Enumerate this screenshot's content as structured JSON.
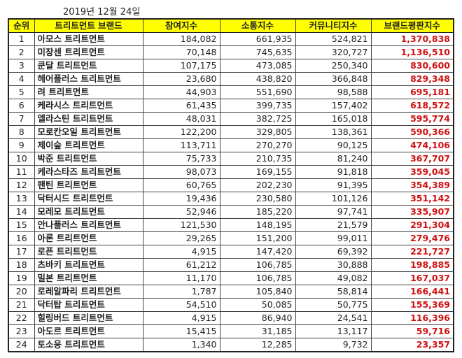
{
  "date": "2019년 12월 24일",
  "colors": {
    "header_bg": "#ffff00",
    "score_text": "#d01010"
  },
  "headers": [
    "순위",
    "트리트먼트 브랜드",
    "참여지수",
    "소통지수",
    "커뮤니티지수",
    "브랜드평판지수"
  ],
  "rows": [
    {
      "rank": "1",
      "brand": "아모스 트리트먼트",
      "participation": "184,082",
      "communication": "661,935",
      "community": "524,821",
      "reputation": "1,370,838"
    },
    {
      "rank": "2",
      "brand": "미장센 트리트먼트",
      "participation": "70,148",
      "communication": "745,635",
      "community": "320,727",
      "reputation": "1,136,510"
    },
    {
      "rank": "3",
      "brand": "쿤달 트리트먼트",
      "participation": "107,175",
      "communication": "473,085",
      "community": "250,340",
      "reputation": "830,600"
    },
    {
      "rank": "4",
      "brand": "헤어플러스 트리트먼트",
      "participation": "23,680",
      "communication": "438,820",
      "community": "366,848",
      "reputation": "829,348"
    },
    {
      "rank": "5",
      "brand": "려 트리트먼트",
      "participation": "44,903",
      "communication": "551,690",
      "community": "98,588",
      "reputation": "695,181"
    },
    {
      "rank": "6",
      "brand": "케라시스 트리트먼트",
      "participation": "61,435",
      "communication": "399,735",
      "community": "157,402",
      "reputation": "618,572"
    },
    {
      "rank": "7",
      "brand": "엘라스틴 트리트먼트",
      "participation": "48,031",
      "communication": "382,725",
      "community": "165,018",
      "reputation": "595,774"
    },
    {
      "rank": "8",
      "brand": "모로칸오일 트리트먼트",
      "participation": "122,200",
      "communication": "329,805",
      "community": "138,361",
      "reputation": "590,366"
    },
    {
      "rank": "9",
      "brand": "제이숲 트리트먼트",
      "participation": "113,711",
      "communication": "270,270",
      "community": "90,125",
      "reputation": "474,106"
    },
    {
      "rank": "10",
      "brand": "박준 트리트먼트",
      "participation": "75,733",
      "communication": "210,735",
      "community": "81,240",
      "reputation": "367,707"
    },
    {
      "rank": "11",
      "brand": "케라스타즈 트리트먼트",
      "participation": "98,073",
      "communication": "169,155",
      "community": "91,818",
      "reputation": "359,045"
    },
    {
      "rank": "12",
      "brand": "팬틴 트리트먼트",
      "participation": "60,765",
      "communication": "202,230",
      "community": "91,395",
      "reputation": "354,389"
    },
    {
      "rank": "13",
      "brand": "닥터시드 트리트먼트",
      "participation": "19,436",
      "communication": "230,580",
      "community": "101,126",
      "reputation": "351,142"
    },
    {
      "rank": "14",
      "brand": "모레모 트리트먼트",
      "participation": "52,946",
      "communication": "185,220",
      "community": "97,741",
      "reputation": "335,907"
    },
    {
      "rank": "15",
      "brand": "안나플러스 트리트먼트",
      "participation": "121,530",
      "communication": "148,195",
      "community": "21,579",
      "reputation": "291,304"
    },
    {
      "rank": "16",
      "brand": "아론 트리트먼트",
      "participation": "29,265",
      "communication": "151,200",
      "community": "99,011",
      "reputation": "279,476"
    },
    {
      "rank": "17",
      "brand": "로픈 트리트먼트",
      "participation": "4,915",
      "communication": "147,420",
      "community": "69,392",
      "reputation": "221,727"
    },
    {
      "rank": "18",
      "brand": "츠바키 트리트먼트",
      "participation": "61,212",
      "communication": "106,785",
      "community": "30,888",
      "reputation": "198,885"
    },
    {
      "rank": "19",
      "brand": "밀본 트리트먼트",
      "participation": "11,170",
      "communication": "106,785",
      "community": "49,082",
      "reputation": "167,037"
    },
    {
      "rank": "20",
      "brand": "로레알파리 트리트먼트",
      "participation": "1,787",
      "communication": "105,840",
      "community": "58,814",
      "reputation": "166,441"
    },
    {
      "rank": "21",
      "brand": "닥터탑 트리트먼트",
      "participation": "54,510",
      "communication": "50,085",
      "community": "50,775",
      "reputation": "155,369"
    },
    {
      "rank": "22",
      "brand": "힐링버드 트리트먼트",
      "participation": "4,915",
      "communication": "86,940",
      "community": "24,541",
      "reputation": "116,396"
    },
    {
      "rank": "23",
      "brand": "아도르 트리트먼트",
      "participation": "15,415",
      "communication": "31,185",
      "community": "13,117",
      "reputation": "59,716"
    },
    {
      "rank": "24",
      "brand": "토소웅 트리트먼트",
      "participation": "1,340",
      "communication": "12,285",
      "community": "9,732",
      "reputation": "23,357"
    }
  ]
}
